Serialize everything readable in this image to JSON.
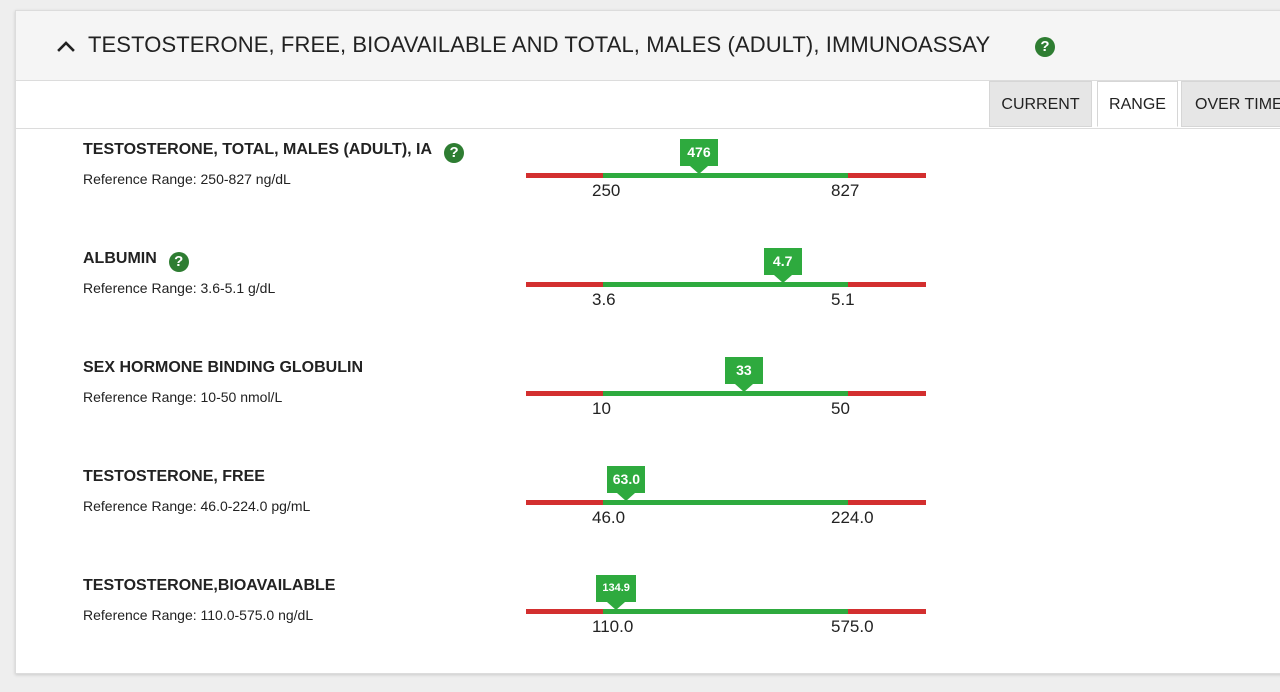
{
  "header": {
    "title": "TESTOSTERONE, FREE, BIOAVAILABLE AND TOTAL, MALES (ADULT), IMMUNOASSAY",
    "collapse_icon": "chevron-up-icon",
    "help_icon": "help-icon",
    "help_glyph": "?"
  },
  "tabs": [
    {
      "label": "CURRENT",
      "active": false
    },
    {
      "label": "RANGE",
      "active": true
    },
    {
      "label": "OVER TIME",
      "active": false
    }
  ],
  "colors": {
    "in_range": "#2eaa3e",
    "out_of_range": "#d32f2f",
    "help": "#2e7d32"
  },
  "results": [
    {
      "name": "TESTOSTERONE, TOTAL, MALES (ADULT), IA",
      "has_help": true,
      "reference": "Reference Range: 250-827 ng/dL",
      "value_label": "476",
      "low_label": "250",
      "high_label": "827",
      "low": 250,
      "high": 827,
      "value": 476
    },
    {
      "name": "ALBUMIN",
      "has_help": true,
      "reference": "Reference Range: 3.6-5.1 g/dL",
      "value_label": "4.7",
      "low_label": "3.6",
      "high_label": "5.1",
      "low": 3.6,
      "high": 5.1,
      "value": 4.7
    },
    {
      "name": "SEX HORMONE BINDING GLOBULIN",
      "has_help": false,
      "reference": "Reference Range: 10-50 nmol/L",
      "value_label": "33",
      "low_label": "10",
      "high_label": "50",
      "low": 10,
      "high": 50,
      "value": 33
    },
    {
      "name": "TESTOSTERONE, FREE",
      "has_help": false,
      "reference": "Reference Range: 46.0-224.0 pg/mL",
      "value_label": "63.0",
      "low_label": "46.0",
      "high_label": "224.0",
      "low": 46.0,
      "high": 224.0,
      "value": 63.0
    },
    {
      "name": "TESTOSTERONE,BIOAVAILABLE",
      "has_help": false,
      "reference": "Reference Range: 110.0-575.0 ng/dL",
      "value_label": "134.9",
      "low_label": "110.0",
      "high_label": "575.0",
      "low": 110.0,
      "high": 575.0,
      "value": 134.9
    }
  ]
}
